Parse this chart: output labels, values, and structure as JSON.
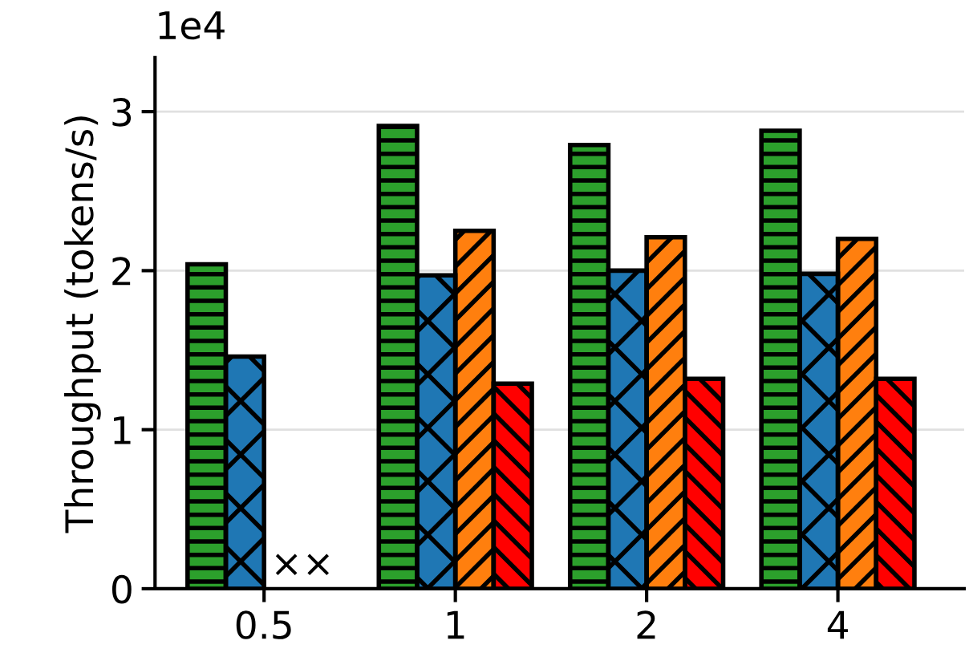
{
  "chart_data": {
    "type": "bar",
    "ylabel": "Throughput (tokens/s)",
    "categories": [
      "0.5",
      "1",
      "2",
      "4"
    ],
    "series": [
      {
        "color": "#2ca02c",
        "values": [
          2.04,
          2.91,
          2.79,
          2.88
        ]
      },
      {
        "color": "#1f77b4",
        "values": [
          1.46,
          1.97,
          2.0,
          1.98
        ]
      },
      {
        "color": "#ff7f0e",
        "values": [
          null,
          2.25,
          2.21,
          2.2
        ]
      },
      {
        "color": "#ff0000",
        "values": [
          null,
          1.29,
          1.32,
          1.32
        ]
      }
    ],
    "ylim": [
      0,
      3.34
    ],
    "yticks": [
      0,
      1,
      2,
      3
    ],
    "grid": "y",
    "legend": false,
    "annotations": [
      {
        "text": "1e4"
      },
      {
        "text": "××",
        "x": "0.5",
        "y": 0
      }
    ]
  }
}
